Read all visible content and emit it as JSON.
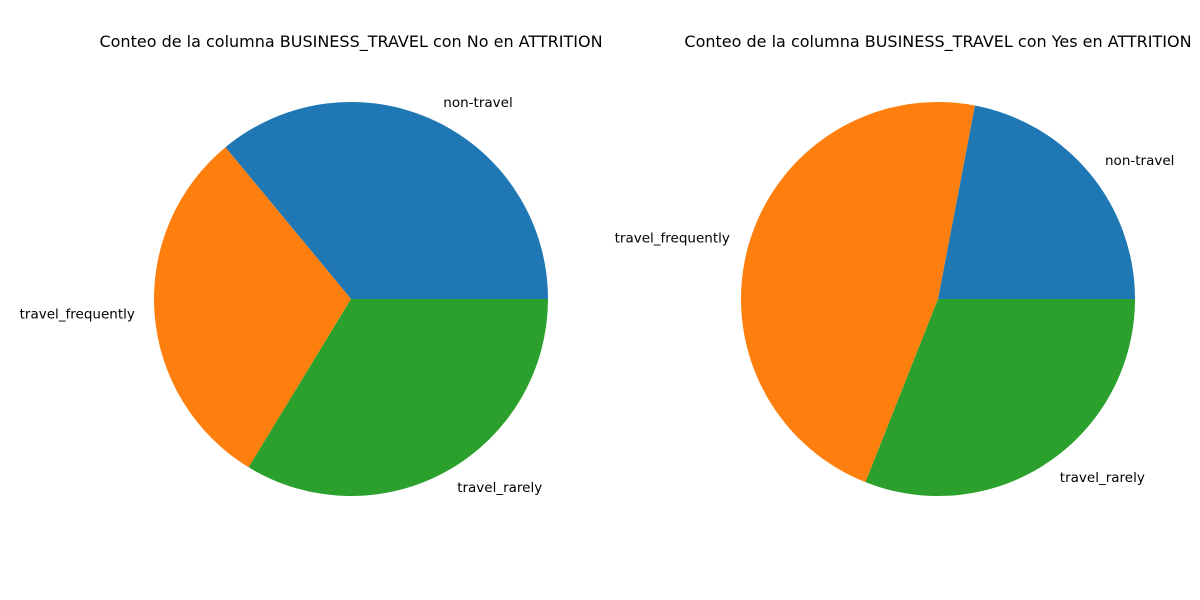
{
  "chart_data": [
    {
      "type": "pie",
      "title": "Conteo de la columna BUSINESS_TRAVEL con No en ATTRITION",
      "labels": [
        "non-travel",
        "travel_frequently",
        "travel_rarely"
      ],
      "values": [
        36.0,
        30.3,
        33.7
      ],
      "colors": [
        "#1f77b4",
        "#ff7f0e",
        "#2ca02c"
      ],
      "start_angle_deg": 0,
      "direction": "counterclockwise"
    },
    {
      "type": "pie",
      "title": "Conteo de la columna BUSINESS_TRAVEL con Yes en ATTRITION",
      "labels": [
        "non-travel",
        "travel_frequently",
        "travel_rarely"
      ],
      "values": [
        22.0,
        47.0,
        31.0
      ],
      "colors": [
        "#1f77b4",
        "#ff7f0e",
        "#2ca02c"
      ],
      "start_angle_deg": 0,
      "direction": "counterclockwise"
    }
  ]
}
